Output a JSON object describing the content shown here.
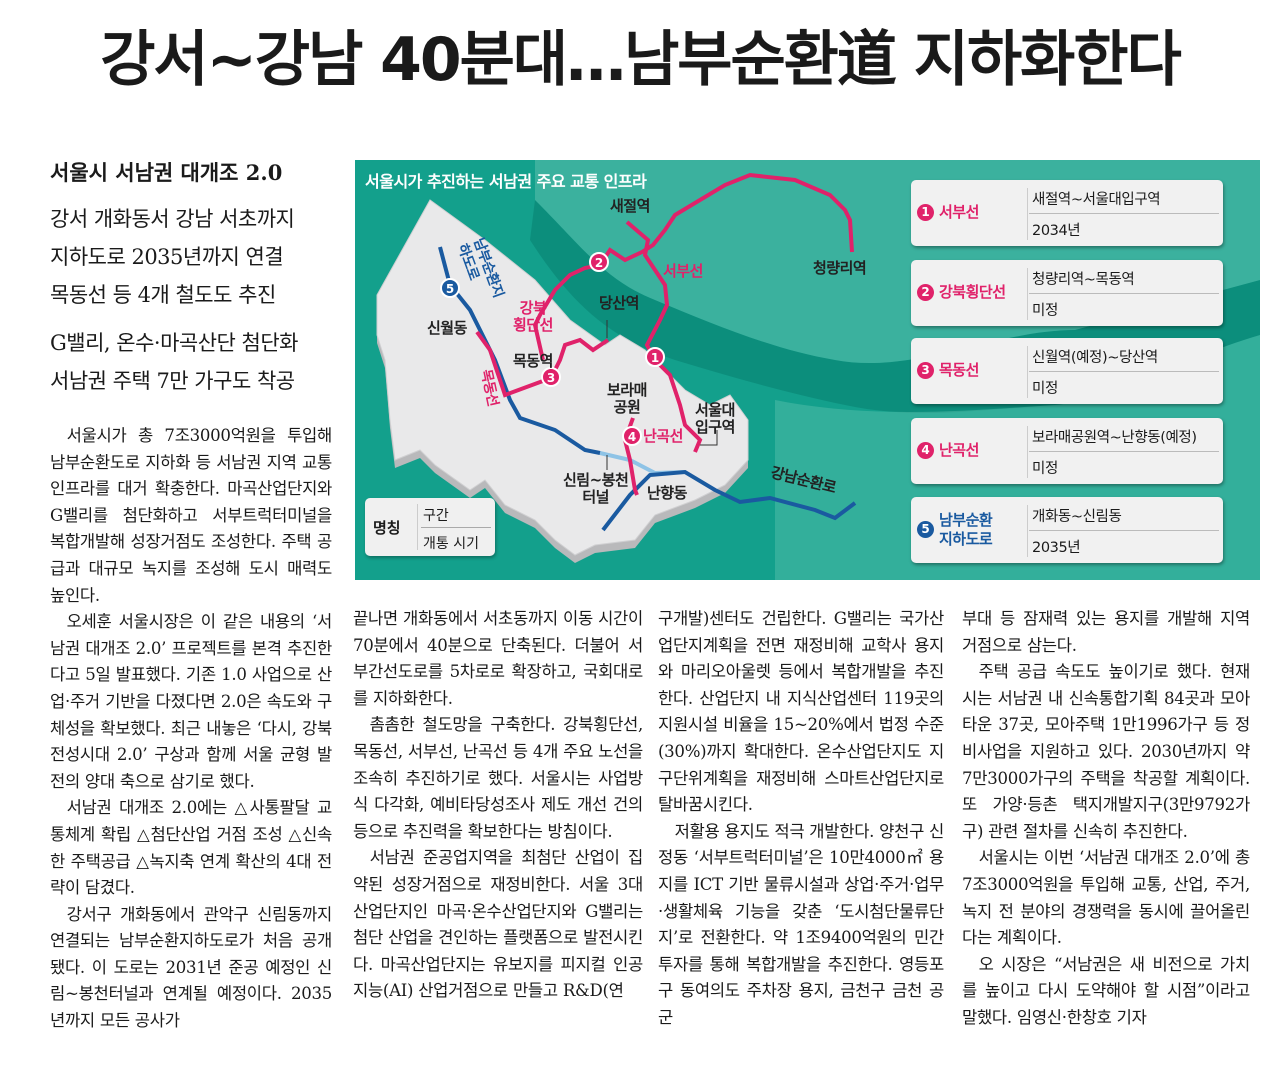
{
  "headline": "강서~강남 40분대…남부순환道 지하화한다",
  "subheads": {
    "lead": "서울시 서남권 대개조 2.0",
    "group1": [
      "강서 개화동서 강남 서초까지",
      "지하도로 2035년까지 연결",
      "목동선 등 4개 철도도 추진"
    ],
    "group2": [
      "G밸리, 온수·마곡산단 첨단화",
      "서남권 주택 7만 가구도 착공"
    ]
  },
  "graphic": {
    "title": "서울시가 추진하는 서남권 주요 교통 인프라",
    "colors": {
      "background": "#13a08c",
      "rail": "#e0226a",
      "road": "#1a5aa0",
      "tunnel": "#8ec3e6",
      "land": "#e9e9ea"
    },
    "map_labels": {
      "saejeol": "새절역",
      "seobu": "서부선",
      "cheongnyangni": "청량리역",
      "dangsan": "당산역",
      "sinwol": "신월동",
      "mokdong_station": "목동역",
      "gangbuk_line": [
        "강북",
        "횡단선"
      ],
      "nambu_road": "남부순환지하도로",
      "mokdong_line": "목동선",
      "boramae": [
        "보라매",
        "공원"
      ],
      "snu_station": [
        "서울대",
        "입구역"
      ],
      "nangok": "난곡선",
      "sillim_tunnel": [
        "신림~봉천",
        "터널"
      ],
      "nanhyang": "난향동",
      "gangnam_road": "강남순환로",
      "markers": [
        "1",
        "2",
        "3",
        "4",
        "5"
      ]
    },
    "legend": {
      "name": "명칭",
      "section": "구간",
      "opening": "개통 시기"
    },
    "routes": [
      {
        "num": "1",
        "name": [
          "서부선"
        ],
        "section": "새절역~서울대입구역",
        "opening": "2034년",
        "color": "#e0226a"
      },
      {
        "num": "2",
        "name": [
          "강북횡단선"
        ],
        "section": "청량리역~목동역",
        "opening": "미정",
        "color": "#e0226a"
      },
      {
        "num": "3",
        "name": [
          "목동선"
        ],
        "section": "신월역(예정)~당산역",
        "opening": "미정",
        "color": "#e0226a"
      },
      {
        "num": "4",
        "name": [
          "난곡선"
        ],
        "section": "보라매공원역~난향동(예정)",
        "opening": "미정",
        "color": "#e0226a"
      },
      {
        "num": "5",
        "name": [
          "남부순환",
          "지하도로"
        ],
        "section": "개화동~신림동",
        "opening": "2035년",
        "color": "#1a5aa0"
      }
    ]
  },
  "body": {
    "col1": [
      "서울시가 총 7조3000억원을 투입해 남부순환도로 지하화 등 서남권 지역 교통 인프라를 대거 확충한다. 마곡산업단지와 G밸리를 첨단화하고 서부트럭터미널을 복합개발해 성장거점도 조성한다. 주택 공급과 대규모 녹지를 조성해 도시 매력도 높인다.",
      "오세훈 서울시장은 이 같은 내용의 ‘서남권 대개조 2.0’ 프로젝트를 본격 추진한다고 5일 발표했다. 기존 1.0 사업으로 산업·주거 기반을 다졌다면 2.0은 속도와 구체성을 확보했다. 최근 내놓은 ‘다시, 강북전성시대 2.0’ 구상과 함께 서울 균형 발전의 양대 축으로 삼기로 했다.",
      "서남권 대개조 2.0에는 △사통팔달 교통체계 확립 △첨단산업 거점 조성 △신속한 주택공급 △녹지축 연계 확산의 4대 전략이 담겼다.",
      "강서구 개화동에서 관악구 신림동까지 연결되는 남부순환지하도로가 처음 공개됐다. 이 도로는 2031년 준공 예정인 신림~봉천터널과 연계될 예정이다. 2035년까지 모든 공사가"
    ],
    "col2": [
      "끝나면 개화동에서 서초동까지 이동 시간이 70분에서 40분으로 단축된다. 더불어 서부간선도로를 5차로로 확장하고, 국회대로를 지하화한다.",
      "촘촘한 철도망을 구축한다. 강북횡단선, 목동선, 서부선, 난곡선 등 4개 주요 노선을 조속히 추진하기로 했다. 서울시는 사업방식 다각화, 예비타당성조사 제도 개선 건의 등으로 추진력을 확보한다는 방침이다.",
      "서남권 준공업지역을 최첨단 산업이 집약된 성장거점으로 재정비한다. 서울 3대 산업단지인 마곡·온수산업단지와 G밸리는 첨단 산업을 견인하는 플랫폼으로 발전시킨다. 마곡산업단지는 유보지를 피지컬 인공지능(AI) 산업거점으로 만들고 R&D(연"
    ],
    "col3": [
      "구개발)센터도 건립한다. G밸리는 국가산업단지계획을 전면 재정비해 교학사 용지와 마리오아울렛 등에서 복합개발을 추진한다. 산업단지 내 지식산업센터 119곳의 지원시설 비율을 15~20%에서 법정 수준(30%)까지 확대한다. 온수산업단지도 지구단위계획을 재정비해 스마트산업단지로 탈바꿈시킨다.",
      "저활용 용지도 적극 개발한다. 양천구 신정동 ‘서부트럭터미널’은 10만4000㎡ 용지를 ICT 기반 물류시설과 상업·주거·업무·생활체육 기능을 갖춘 ‘도시첨단물류단지’로 전환한다. 약 1조9400억원의 민간투자를 통해 복합개발을 추진한다. 영등포구 동여의도 주차장 용지, 금천구 금천 공군"
    ],
    "col4": [
      "부대 등 잠재력 있는 용지를 개발해 지역 거점으로 삼는다.",
      "주택 공급 속도도 높이기로 했다. 현재 시는 서남권 내 신속통합기획 84곳과 모아타운 37곳, 모아주택 1만1996가구 등 정비사업을 지원하고 있다. 2030년까지 약 7만3000가구의 주택을 착공할 계획이다. 또 가양·등촌 택지개발지구(3만9792가구) 관련 절차를 신속히 추진한다.",
      "서울시는 이번 ‘서남권 대개조 2.0’에 총 7조3000억원을 투입해 교통, 산업, 주거, 녹지 전 분야의 경쟁력을 동시에 끌어올린다는 계획이다.",
      "오 시장은 “서남권은 새 비전으로 가치를 높이고 다시 도약해야 할 시점”이라고 말했다."
    ],
    "byline": "임영신·한창호 기자"
  }
}
